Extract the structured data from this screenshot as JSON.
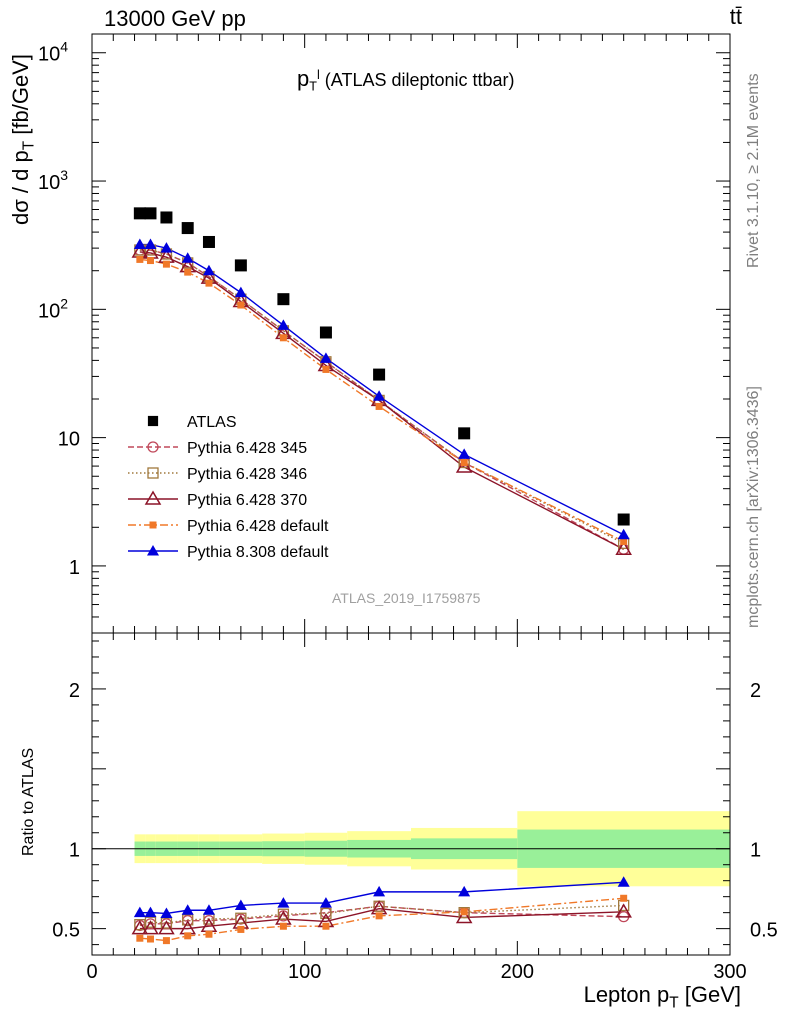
{
  "header": {
    "left": "13000 GeV pp",
    "right": "tt̄"
  },
  "side_text": {
    "rivet": "Rivet 3.1.10, ≥ 2.1M events",
    "mcplots": "mcplots.cern.ch [arXiv:1306.3436]"
  },
  "plot_title": {
    "var": "p",
    "sub": "T",
    "sup": "l",
    "desc": "(ATLAS dileptonic ttbar)"
  },
  "analysis_id": "ATLAS_2019_I1759875",
  "labels": {
    "ylabel_main": "dσ / d p",
    "ylabel_main_sub": "T",
    "ylabel_main_unit": "[fb/GeV]",
    "ylabel_ratio": "Ratio to ATLAS",
    "xlabel": "Lepton p",
    "xlabel_sub": "T",
    "xlabel_unit": "[GeV]"
  },
  "chart_data": [
    {
      "type": "scatter",
      "panel": "main",
      "yscale": "log",
      "xlim": [
        0,
        300
      ],
      "ylim": [
        0.3,
        14000
      ],
      "ytick_labels": [
        "1",
        "10",
        "10^2",
        "10^3",
        "10^4"
      ],
      "x": [
        22.5,
        27.5,
        35,
        45,
        55,
        70,
        90,
        110,
        135,
        175,
        250
      ],
      "series": [
        {
          "name": "ATLAS",
          "color": "#000000",
          "marker": "square",
          "line": "none",
          "values": [
            560,
            560,
            520,
            430,
            335,
            220,
            120,
            66,
            31,
            10.8,
            2.3
          ]
        },
        {
          "name": "Pythia 6.428 345",
          "color": "#c0485a",
          "marker": "open-circle",
          "line": "dashed",
          "values": [
            290,
            290,
            270,
            230,
            180,
            120,
            68,
            39,
            19.5,
            6.4,
            1.35
          ]
        },
        {
          "name": "Pythia 6.428 346",
          "color": "#a0783c",
          "marker": "open-square",
          "line": "dotted",
          "values": [
            290,
            290,
            270,
            230,
            180,
            120,
            68,
            39,
            19.5,
            6.4,
            1.5
          ]
        },
        {
          "name": "Pythia 6.428 370",
          "color": "#8c1428",
          "marker": "open-triangle",
          "line": "solid",
          "values": [
            280,
            275,
            255,
            215,
            175,
            115,
            65,
            36.5,
            19.5,
            5.9,
            1.35
          ]
        },
        {
          "name": "Pythia 6.428 default",
          "color": "#f07828",
          "marker": "filled-square-small",
          "line": "dashdot",
          "values": [
            245,
            240,
            225,
            195,
            160,
            108,
            60,
            34,
            17.5,
            6.4,
            1.55
          ]
        },
        {
          "name": "Pythia 8.308 default",
          "color": "#0000dc",
          "marker": "filled-triangle",
          "line": "solid",
          "values": [
            320,
            320,
            300,
            250,
            200,
            135,
            75,
            41.5,
            21,
            7.4,
            1.75
          ]
        }
      ]
    },
    {
      "type": "scatter",
      "panel": "ratio",
      "xlim": [
        0,
        300
      ],
      "ylim": [
        0.335,
        2.35
      ],
      "ytick_labels": [
        "0.5",
        "1",
        "2"
      ],
      "xtick_labels": [
        "0",
        "100",
        "200",
        "300"
      ],
      "bins": [
        [
          20,
          25
        ],
        [
          25,
          30
        ],
        [
          30,
          40
        ],
        [
          40,
          50
        ],
        [
          50,
          60
        ],
        [
          60,
          80
        ],
        [
          80,
          100
        ],
        [
          100,
          120
        ],
        [
          120,
          150
        ],
        [
          150,
          200
        ],
        [
          200,
          300
        ]
      ],
      "band_inner": [
        0.045,
        0.045,
        0.045,
        0.045,
        0.045,
        0.045,
        0.047,
        0.05,
        0.055,
        0.065,
        0.12
      ],
      "band_outer": [
        0.09,
        0.09,
        0.09,
        0.09,
        0.09,
        0.09,
        0.095,
        0.1,
        0.11,
        0.13,
        0.235
      ],
      "x": [
        22.5,
        27.5,
        35,
        45,
        55,
        70,
        90,
        110,
        135,
        175,
        250
      ],
      "series": [
        {
          "name": "Pythia 6.428 345",
          "values": [
            0.52,
            0.53,
            0.53,
            0.55,
            0.55,
            0.56,
            0.58,
            0.6,
            0.64,
            0.6,
            0.575
          ]
        },
        {
          "name": "Pythia 6.428 346",
          "values": [
            0.525,
            0.54,
            0.535,
            0.555,
            0.56,
            0.565,
            0.59,
            0.595,
            0.64,
            0.6,
            0.645
          ]
        },
        {
          "name": "Pythia 6.428 370",
          "values": [
            0.5,
            0.5,
            0.5,
            0.5,
            0.515,
            0.535,
            0.56,
            0.545,
            0.625,
            0.57,
            0.605
          ]
        },
        {
          "name": "Pythia 6.428 default",
          "values": [
            0.44,
            0.435,
            0.425,
            0.455,
            0.465,
            0.495,
            0.515,
            0.515,
            0.58,
            0.605,
            0.69
          ]
        },
        {
          "name": "Pythia 8.308 default",
          "values": [
            0.6,
            0.6,
            0.595,
            0.615,
            0.615,
            0.645,
            0.66,
            0.66,
            0.73,
            0.73,
            0.79
          ]
        }
      ]
    }
  ]
}
